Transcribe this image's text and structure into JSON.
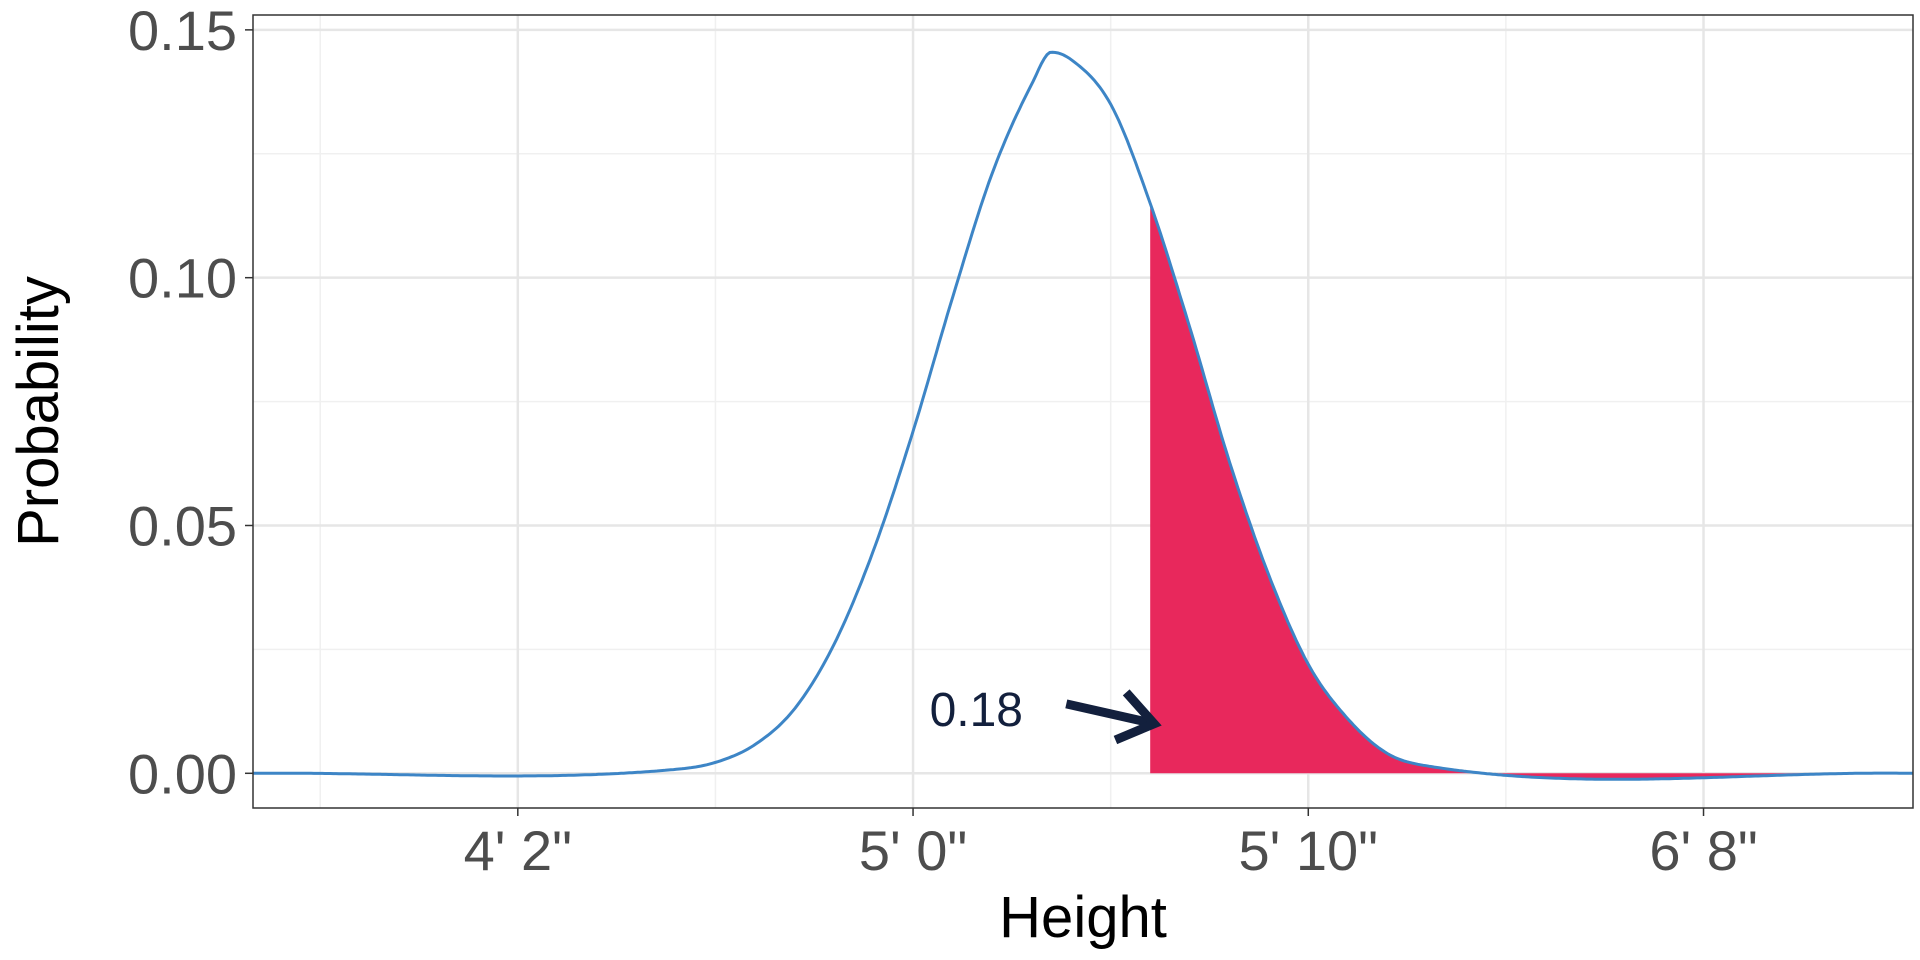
{
  "chart_data": {
    "type": "area",
    "title": "",
    "xlabel": "Height",
    "ylabel": "Probability",
    "xlim": [
      43.3,
      85.3
    ],
    "ylim": [
      -0.007,
      0.153
    ],
    "x_unit": "inches",
    "x_ticks": [
      {
        "value": 50,
        "label": "4' 2\""
      },
      {
        "value": 60,
        "label": "5' 0\""
      },
      {
        "value": 70,
        "label": "5' 10\""
      },
      {
        "value": 80,
        "label": "6' 8\""
      }
    ],
    "x_minor_ticks": [
      45,
      55,
      65,
      75
    ],
    "y_ticks": [
      {
        "value": 0.0,
        "label": "0.00"
      },
      {
        "value": 0.05,
        "label": "0.05"
      },
      {
        "value": 0.1,
        "label": "0.10"
      },
      {
        "value": 0.15,
        "label": "0.15"
      }
    ],
    "y_minor_ticks": [
      0.025,
      0.075,
      0.125
    ],
    "grid": true,
    "series": [
      {
        "x": [
          43.3,
          54.0,
          55.0,
          56.0,
          57.0,
          58.0,
          59.0,
          60.0,
          61.0,
          62.0,
          63.0,
          63.5,
          64.0,
          65.0,
          66.0,
          67.0,
          68.0,
          69.0,
          70.0,
          71.0,
          72.0,
          73.0,
          85.3
        ],
        "values": [
          0.0,
          0.0008,
          0.0022,
          0.0058,
          0.013,
          0.026,
          0.045,
          0.069,
          0.096,
          0.121,
          0.139,
          0.1455,
          0.144,
          0.135,
          0.115,
          0.09,
          0.063,
          0.04,
          0.022,
          0.011,
          0.004,
          0.0015,
          0.0
        ],
        "color": "#3d85c6"
      }
    ],
    "shaded_region": {
      "from": 66,
      "to": 85.3,
      "color": "#e8285c"
    },
    "annotation": {
      "text": "0.18",
      "x": 61.6,
      "y": 0.013,
      "arrow_to": {
        "x": 66.1,
        "y": 0.01
      },
      "color": "#13203d"
    }
  }
}
